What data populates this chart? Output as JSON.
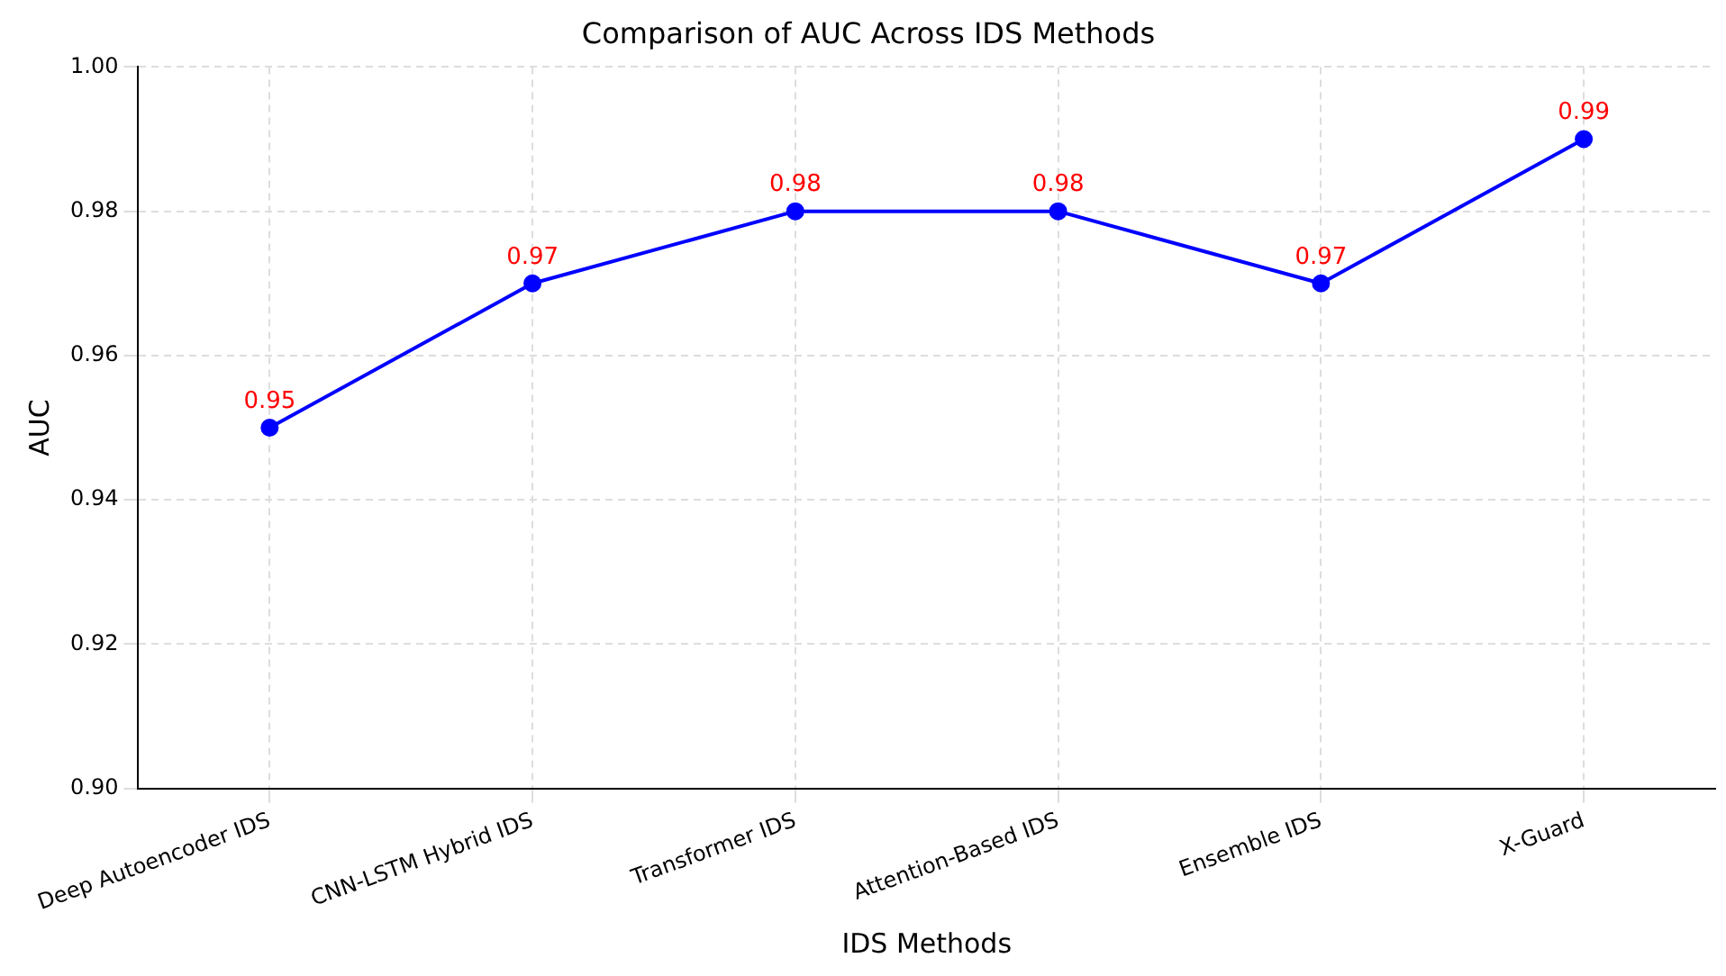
{
  "chart_data": {
    "type": "line",
    "title": "Comparison of AUC Across IDS Methods",
    "xlabel": "IDS Methods",
    "ylabel": "AUC",
    "categories": [
      "Deep Autoencoder IDS",
      "CNN-LSTM Hybrid IDS",
      "Transformer IDS",
      "Attention-Based IDS",
      "Ensemble IDS",
      "X-Guard"
    ],
    "series": [
      {
        "color": "#0000ff",
        "values": [
          0.95,
          0.97,
          0.98,
          0.98,
          0.97,
          0.99
        ]
      }
    ],
    "ylim": [
      0.9,
      1.0
    ],
    "yticks": [
      {
        "value": 0.9,
        "label": "0.90"
      },
      {
        "value": 0.92,
        "label": "0.92"
      },
      {
        "value": 0.94,
        "label": "0.94"
      },
      {
        "value": 0.96,
        "label": "0.96"
      },
      {
        "value": 0.98,
        "label": "0.98"
      },
      {
        "value": 1.0,
        "label": "1.00"
      }
    ],
    "grid": true,
    "marker": "circle",
    "line_style": "solid",
    "data_labels": true,
    "legend": false
  }
}
